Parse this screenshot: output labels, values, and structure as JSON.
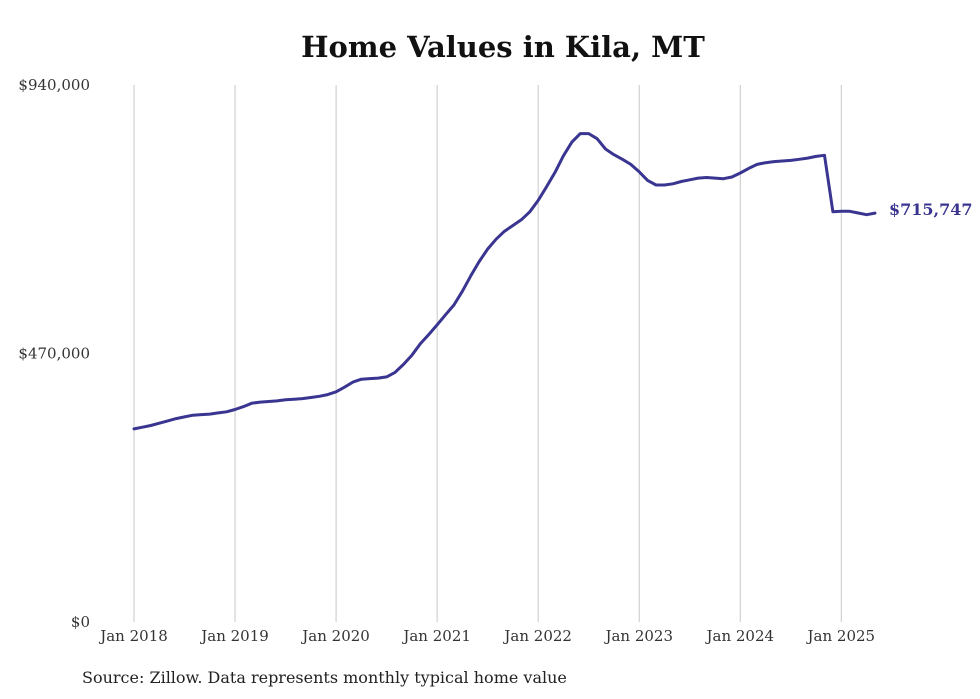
{
  "chart_data": {
    "type": "line",
    "title": "Home Values in Kila, MT",
    "xlabel": "",
    "ylabel": "",
    "x_ticks": [
      "Jan 2018",
      "Jan 2019",
      "Jan 2020",
      "Jan 2021",
      "Jan 2022",
      "Jan 2023",
      "Jan 2024",
      "Jan 2025"
    ],
    "y_ticks": [
      {
        "value": 940000,
        "label": "$940,000"
      },
      {
        "value": 470000,
        "label": "$470,000"
      },
      {
        "value": 0,
        "label": "$0"
      }
    ],
    "ylim": [
      0,
      940000
    ],
    "xlim": [
      "2018-01",
      "2025-05"
    ],
    "grid": "vertical lines at each January",
    "line_color": "#3a3590",
    "end_label": "$715,747",
    "series": [
      {
        "x": [
          "2018-01",
          "2018-02",
          "2018-03",
          "2018-04",
          "2018-05",
          "2018-06",
          "2018-07",
          "2018-08",
          "2018-09",
          "2018-10",
          "2018-11",
          "2018-12",
          "2019-01",
          "2019-02",
          "2019-03",
          "2019-04",
          "2019-05",
          "2019-06",
          "2019-07",
          "2019-08",
          "2019-09",
          "2019-10",
          "2019-11",
          "2019-12",
          "2020-01",
          "2020-02",
          "2020-03",
          "2020-04",
          "2020-05",
          "2020-06",
          "2020-07",
          "2020-08",
          "2020-09",
          "2020-10",
          "2020-11",
          "2020-12",
          "2021-01",
          "2021-02",
          "2021-03",
          "2021-04",
          "2021-05",
          "2021-06",
          "2021-07",
          "2021-08",
          "2021-09",
          "2021-10",
          "2021-11",
          "2021-12",
          "2022-01",
          "2022-02",
          "2022-03",
          "2022-04",
          "2022-05",
          "2022-06",
          "2022-07",
          "2022-08",
          "2022-09",
          "2022-10",
          "2022-11",
          "2022-12",
          "2023-01",
          "2023-02",
          "2023-03",
          "2023-04",
          "2023-05",
          "2023-06",
          "2023-07",
          "2023-08",
          "2023-09",
          "2023-10",
          "2023-11",
          "2023-12",
          "2024-01",
          "2024-02",
          "2024-03",
          "2024-04",
          "2024-05",
          "2024-06",
          "2024-07",
          "2024-08",
          "2024-09",
          "2024-10",
          "2024-11",
          "2024-12",
          "2025-01",
          "2025-02",
          "2025-03",
          "2025-04",
          "2025-05"
        ],
        "values": [
          338000,
          341000,
          344000,
          348000,
          352000,
          356000,
          359000,
          362000,
          363000,
          364000,
          366000,
          368000,
          372000,
          377000,
          383000,
          385000,
          386000,
          387000,
          389000,
          390000,
          391000,
          393000,
          395000,
          398000,
          403000,
          411000,
          420000,
          425000,
          426000,
          427000,
          429000,
          437000,
          451000,
          467000,
          487000,
          503000,
          520000,
          538000,
          555000,
          579000,
          606000,
          631000,
          653000,
          670000,
          684000,
          694000,
          704000,
          718000,
          738000,
          762000,
          787000,
          816000,
          840000,
          855000,
          855000,
          846000,
          828000,
          818000,
          810000,
          801000,
          788000,
          773000,
          765000,
          765000,
          767000,
          771000,
          774000,
          777000,
          778000,
          777000,
          776000,
          779000,
          786000,
          794000,
          801000,
          804000,
          806000,
          807000,
          808000,
          810000,
          812000,
          815000,
          817000,
          718000,
          719000,
          719000,
          716000,
          713000,
          715747
        ]
      }
    ]
  },
  "source": "Source: Zillow. Data represents monthly typical home value"
}
